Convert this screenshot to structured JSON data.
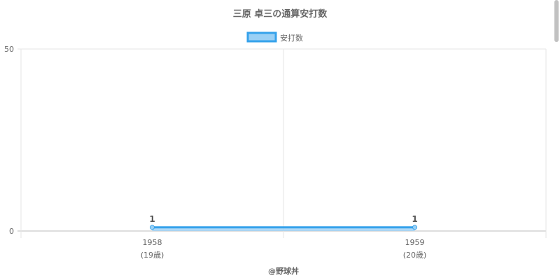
{
  "chart_data": {
    "type": "line",
    "title": "三原 卓三の通算安打数",
    "categories": [
      "1958",
      "1959"
    ],
    "category_sublabels": [
      "(19歳)",
      "(20歳)"
    ],
    "series": [
      {
        "name": "安打数",
        "values": [
          1,
          1
        ],
        "data_labels": [
          "1",
          "1"
        ]
      }
    ],
    "ylim": [
      0,
      50
    ],
    "yticks": [
      "0",
      "50"
    ],
    "grid": true,
    "legend": "top",
    "colors": {
      "line": "#36a2eb",
      "fill": "#9ad0f5"
    },
    "footer": "@野球丼"
  }
}
